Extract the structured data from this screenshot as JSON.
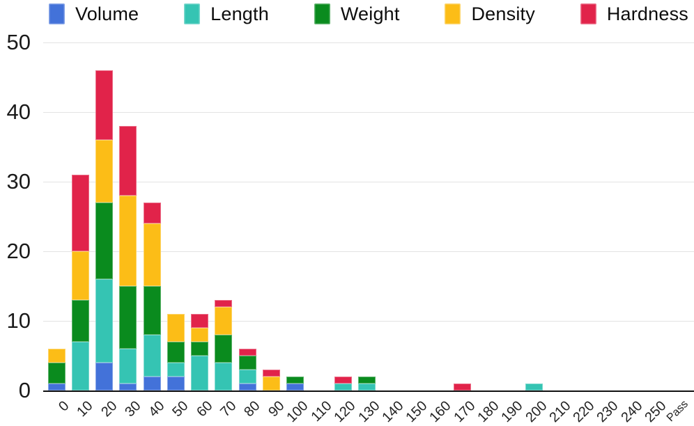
{
  "chart_data": {
    "type": "bar",
    "stacked": true,
    "title": "",
    "xlabel": "",
    "ylabel": "",
    "legend_position": "top",
    "grid": "horizontal",
    "background_color": "#ffffff",
    "grid_color": "#e3e3e3",
    "axis_color": "#101010",
    "ylim": [
      0,
      50
    ],
    "yticks": [
      0,
      10,
      20,
      30,
      40,
      50
    ],
    "categories": [
      "0",
      "10",
      "20",
      "30",
      "40",
      "50",
      "60",
      "70",
      "80",
      "90",
      "100",
      "110",
      "120",
      "130",
      "140",
      "150",
      "160",
      "170",
      "180",
      "190",
      "200",
      "210",
      "220",
      "230",
      "240",
      "250",
      "Pass"
    ],
    "series": [
      {
        "name": "Volume",
        "color": "#4372d9",
        "values": [
          1,
          0,
          4,
          1,
          2,
          2,
          0,
          0,
          1,
          0,
          1,
          0,
          0,
          0,
          0,
          0,
          0,
          0,
          0,
          0,
          0,
          0,
          0,
          0,
          0,
          0,
          0
        ]
      },
      {
        "name": "Length",
        "color": "#35c4b3",
        "values": [
          0,
          7,
          12,
          5,
          6,
          2,
          5,
          4,
          2,
          0,
          0,
          0,
          1,
          1,
          0,
          0,
          0,
          0,
          0,
          0,
          1,
          0,
          0,
          0,
          0,
          0,
          0
        ]
      },
      {
        "name": "Weight",
        "color": "#0a8b1e",
        "values": [
          3,
          6,
          11,
          9,
          7,
          3,
          2,
          4,
          2,
          0,
          1,
          0,
          0,
          1,
          0,
          0,
          0,
          0,
          0,
          0,
          0,
          0,
          0,
          0,
          0,
          0,
          0
        ]
      },
      {
        "name": "Density",
        "color": "#fcbd17",
        "values": [
          2,
          7,
          9,
          13,
          9,
          4,
          2,
          4,
          0,
          2,
          0,
          0,
          0,
          0,
          0,
          0,
          0,
          0,
          0,
          0,
          0,
          0,
          0,
          0,
          0,
          0,
          0
        ]
      },
      {
        "name": "Hardness",
        "color": "#e1234a",
        "values": [
          0,
          11,
          10,
          10,
          3,
          0,
          2,
          1,
          1,
          1,
          0,
          0,
          1,
          0,
          0,
          0,
          0,
          1,
          0,
          0,
          0,
          0,
          0,
          0,
          0,
          0,
          0
        ]
      }
    ]
  }
}
